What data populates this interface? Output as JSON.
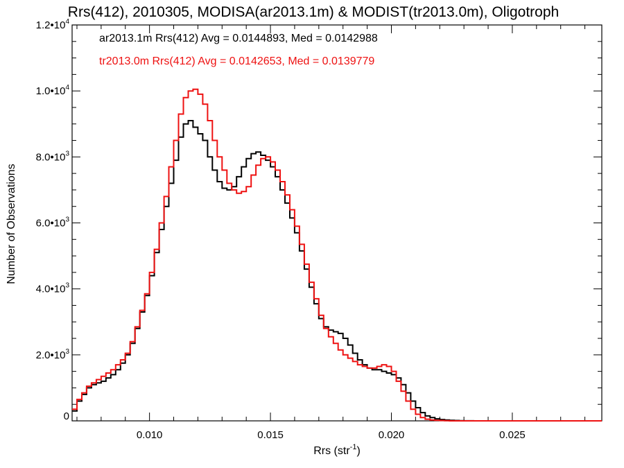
{
  "chart_data": {
    "type": "line",
    "title": "Rrs(412), 2010305, MODISA(ar2013.1m) & MODIST(tr2013.0m), Oligotroph",
    "xlabel": "Rrs (str",
    "xlabel_sup": "-1",
    "xlabel_end": ")",
    "ylabel": "Number of Observations",
    "xlim": [
      0.0068,
      0.0287
    ],
    "ylim": [
      0,
      12000
    ],
    "grid": false,
    "step": true,
    "x_ticks": [
      {
        "value": 0.01,
        "label": "0.010"
      },
      {
        "value": 0.015,
        "label": "0.015"
      },
      {
        "value": 0.02,
        "label": "0.020"
      },
      {
        "value": 0.025,
        "label": "0.025"
      }
    ],
    "y_ticks": [
      {
        "value": 0,
        "mant": "0",
        "exp": ""
      },
      {
        "value": 2000,
        "mant": "2.0•10",
        "exp": "3"
      },
      {
        "value": 4000,
        "mant": "4.0•10",
        "exp": "3"
      },
      {
        "value": 6000,
        "mant": "6.0•10",
        "exp": "3"
      },
      {
        "value": 8000,
        "mant": "8.0•10",
        "exp": "3"
      },
      {
        "value": 10000,
        "mant": "1.0•10",
        "exp": "4"
      },
      {
        "value": 12000,
        "mant": "1.2•10",
        "exp": "4"
      }
    ],
    "legend_placement": "top-left",
    "series": [
      {
        "name": "ar2013.1m Rrs(412) Avg = 0.0144893, Med = 0.0142988",
        "color": "#000000",
        "x": [
          0.0068,
          0.007,
          0.0072,
          0.0074,
          0.0076,
          0.0078,
          0.008,
          0.0082,
          0.0084,
          0.0086,
          0.0088,
          0.009,
          0.0092,
          0.0094,
          0.0096,
          0.0098,
          0.01,
          0.0102,
          0.0104,
          0.0106,
          0.0108,
          0.011,
          0.0112,
          0.0114,
          0.0116,
          0.0118,
          0.012,
          0.0122,
          0.0124,
          0.0126,
          0.0128,
          0.013,
          0.0132,
          0.0134,
          0.0136,
          0.0138,
          0.014,
          0.0142,
          0.0144,
          0.0146,
          0.0148,
          0.015,
          0.0152,
          0.0154,
          0.0156,
          0.0158,
          0.016,
          0.0162,
          0.0164,
          0.0166,
          0.0168,
          0.017,
          0.0172,
          0.0174,
          0.0176,
          0.0178,
          0.018,
          0.0182,
          0.0184,
          0.0186,
          0.0188,
          0.019,
          0.0192,
          0.0194,
          0.0196,
          0.0198,
          0.02,
          0.0202,
          0.0204,
          0.0206,
          0.0208,
          0.021,
          0.0212,
          0.0214,
          0.0216,
          0.0218,
          0.022,
          0.0222,
          0.0224,
          0.0226,
          0.0228,
          0.023,
          0.0232,
          0.0234,
          0.0236,
          0.0238,
          0.024,
          0.0242,
          0.0244,
          0.0246,
          0.0248,
          0.025,
          0.0255,
          0.026,
          0.0265,
          0.027,
          0.0275,
          0.028,
          0.0285
        ],
        "values": [
          300,
          600,
          800,
          1000,
          1100,
          1150,
          1200,
          1300,
          1400,
          1550,
          1750,
          2000,
          2350,
          2800,
          3300,
          3800,
          4400,
          5100,
          5800,
          6500,
          7200,
          7900,
          8600,
          9000,
          9100,
          8900,
          8700,
          8500,
          8000,
          7600,
          7250,
          7050,
          7000,
          7100,
          7400,
          7700,
          7950,
          8100,
          8150,
          8050,
          7900,
          7700,
          7400,
          7000,
          6600,
          6150,
          5700,
          5150,
          4600,
          4050,
          3550,
          3100,
          2850,
          2750,
          2700,
          2650,
          2500,
          2300,
          2050,
          1850,
          1700,
          1600,
          1550,
          1550,
          1500,
          1450,
          1400,
          1300,
          1100,
          850,
          600,
          400,
          250,
          150,
          100,
          60,
          40,
          25,
          15,
          10,
          5,
          3,
          2,
          1,
          0,
          0,
          0,
          0,
          0,
          0,
          0,
          0,
          0,
          0,
          0,
          0,
          0,
          0,
          0
        ],
        "offset": 0.0114
      },
      {
        "name": "tr2013.0m Rrs(412) Avg = 0.0142653, Med = 0.0139779",
        "color": "#ee1111",
        "x": [
          0.0068,
          0.007,
          0.0072,
          0.0074,
          0.0076,
          0.0078,
          0.008,
          0.0082,
          0.0084,
          0.0086,
          0.0088,
          0.009,
          0.0092,
          0.0094,
          0.0096,
          0.0098,
          0.01,
          0.0102,
          0.0104,
          0.0106,
          0.0108,
          0.011,
          0.0112,
          0.0114,
          0.0116,
          0.0118,
          0.012,
          0.0122,
          0.0124,
          0.0126,
          0.0128,
          0.013,
          0.0132,
          0.0134,
          0.0136,
          0.0138,
          0.014,
          0.0142,
          0.0144,
          0.0146,
          0.0148,
          0.015,
          0.0152,
          0.0154,
          0.0156,
          0.0158,
          0.016,
          0.0162,
          0.0164,
          0.0166,
          0.0168,
          0.017,
          0.0172,
          0.0174,
          0.0176,
          0.0178,
          0.018,
          0.0182,
          0.0184,
          0.0186,
          0.0188,
          0.019,
          0.0192,
          0.0194,
          0.0196,
          0.0198,
          0.02,
          0.0202,
          0.0204,
          0.0206,
          0.0208,
          0.021,
          0.0212,
          0.0214,
          0.0216,
          0.0218,
          0.022,
          0.0222,
          0.0224,
          0.0226,
          0.0228,
          0.023,
          0.0232,
          0.0234,
          0.0236,
          0.0238,
          0.024,
          0.0242,
          0.0244,
          0.0246,
          0.0248,
          0.025,
          0.0255,
          0.026,
          0.0265,
          0.027,
          0.0275,
          0.028,
          0.0285
        ],
        "values": [
          350,
          650,
          850,
          1050,
          1150,
          1250,
          1350,
          1450,
          1550,
          1700,
          1850,
          2050,
          2400,
          2850,
          3350,
          3850,
          4500,
          5200,
          6000,
          6800,
          7700,
          8500,
          9300,
          9800,
          10000,
          10050,
          9900,
          9600,
          9100,
          8500,
          8000,
          7600,
          7200,
          7000,
          6900,
          6950,
          7100,
          7450,
          7750,
          7950,
          8000,
          7850,
          7600,
          7250,
          6850,
          6400,
          5900,
          5350,
          4750,
          4200,
          3700,
          3200,
          2800,
          2550,
          2350,
          2150,
          2000,
          1900,
          1800,
          1700,
          1650,
          1600,
          1600,
          1650,
          1700,
          1650,
          1500,
          1200,
          900,
          600,
          350,
          200,
          100,
          50,
          25,
          15,
          10,
          5,
          0,
          0,
          0,
          0,
          0,
          0,
          0,
          0,
          0,
          0,
          0,
          0,
          0,
          0,
          0,
          0,
          0,
          0,
          0,
          0,
          0
        ],
        "offset": 0.0114
      }
    ]
  }
}
